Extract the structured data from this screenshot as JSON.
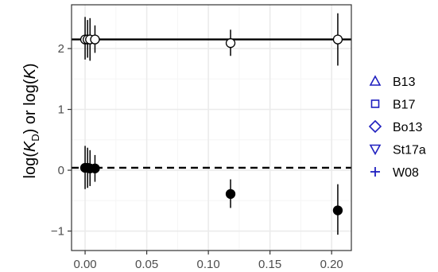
{
  "chart_data": {
    "type": "scatter",
    "title": "",
    "xlabel": "",
    "ylabel_parts": {
      "pre": "log(",
      "k_main": "K",
      "k_sub": "D",
      "mid": ") or log(",
      "k_italic": "K",
      "post": ")"
    },
    "xlim": [
      -0.011,
      0.216
    ],
    "ylim": [
      -1.32,
      2.72
    ],
    "x_ticks": [
      {
        "value": 0.0,
        "label": "0.00"
      },
      {
        "value": 0.05,
        "label": "0.05"
      },
      {
        "value": 0.1,
        "label": "0.10"
      },
      {
        "value": 0.15,
        "label": "0.15"
      },
      {
        "value": 0.2,
        "label": "0.20"
      }
    ],
    "y_ticks": [
      {
        "value": -1,
        "label": "−1"
      },
      {
        "value": 0,
        "label": "0"
      },
      {
        "value": 1,
        "label": "1"
      },
      {
        "value": 2,
        "label": "2"
      }
    ],
    "grid": true,
    "reference_lines": [
      {
        "y": 2.15,
        "style": "solid"
      },
      {
        "y": 0.04,
        "style": "dashed"
      }
    ],
    "series": [
      {
        "marker": "open-circle",
        "points": [
          {
            "x": 0.0,
            "y": 2.15,
            "y_low": 1.82,
            "y_high": 2.52
          },
          {
            "x": 0.002,
            "y": 2.15,
            "y_low": 1.85,
            "y_high": 2.47
          },
          {
            "x": 0.004,
            "y": 2.15,
            "y_low": 1.8,
            "y_high": 2.5
          },
          {
            "x": 0.008,
            "y": 2.15,
            "y_low": 1.93,
            "y_high": 2.38
          },
          {
            "x": 0.118,
            "y": 2.09,
            "y_low": 1.88,
            "y_high": 2.31
          },
          {
            "x": 0.205,
            "y": 2.15,
            "y_low": 1.72,
            "y_high": 2.58
          }
        ]
      },
      {
        "marker": "filled-circle",
        "points": [
          {
            "x": 0.0,
            "y": 0.04,
            "y_low": -0.31,
            "y_high": 0.4
          },
          {
            "x": 0.002,
            "y": 0.04,
            "y_low": -0.29,
            "y_high": 0.37
          },
          {
            "x": 0.004,
            "y": 0.03,
            "y_low": -0.26,
            "y_high": 0.33
          },
          {
            "x": 0.008,
            "y": 0.03,
            "y_low": -0.19,
            "y_high": 0.25
          },
          {
            "x": 0.118,
            "y": -0.39,
            "y_low": -0.62,
            "y_high": -0.15
          },
          {
            "x": 0.205,
            "y": -0.66,
            "y_low": -1.06,
            "y_high": -0.23
          }
        ]
      }
    ],
    "legend": {
      "placement": "right",
      "color": "#1f1fbf",
      "items": [
        {
          "label": "B13",
          "shape": "triangle-up"
        },
        {
          "label": "B17",
          "shape": "square"
        },
        {
          "label": "Bo13",
          "shape": "diamond"
        },
        {
          "label": "St17a",
          "shape": "triangle-down"
        },
        {
          "label": "W08",
          "shape": "plus"
        }
      ]
    },
    "colors": {
      "panel_background": "#ffffff",
      "panel_border": "#333333",
      "grid_major": "#ebebeb",
      "grid_minor": "#f5f5f5",
      "ink": "#000000",
      "tick": "#333333"
    }
  }
}
